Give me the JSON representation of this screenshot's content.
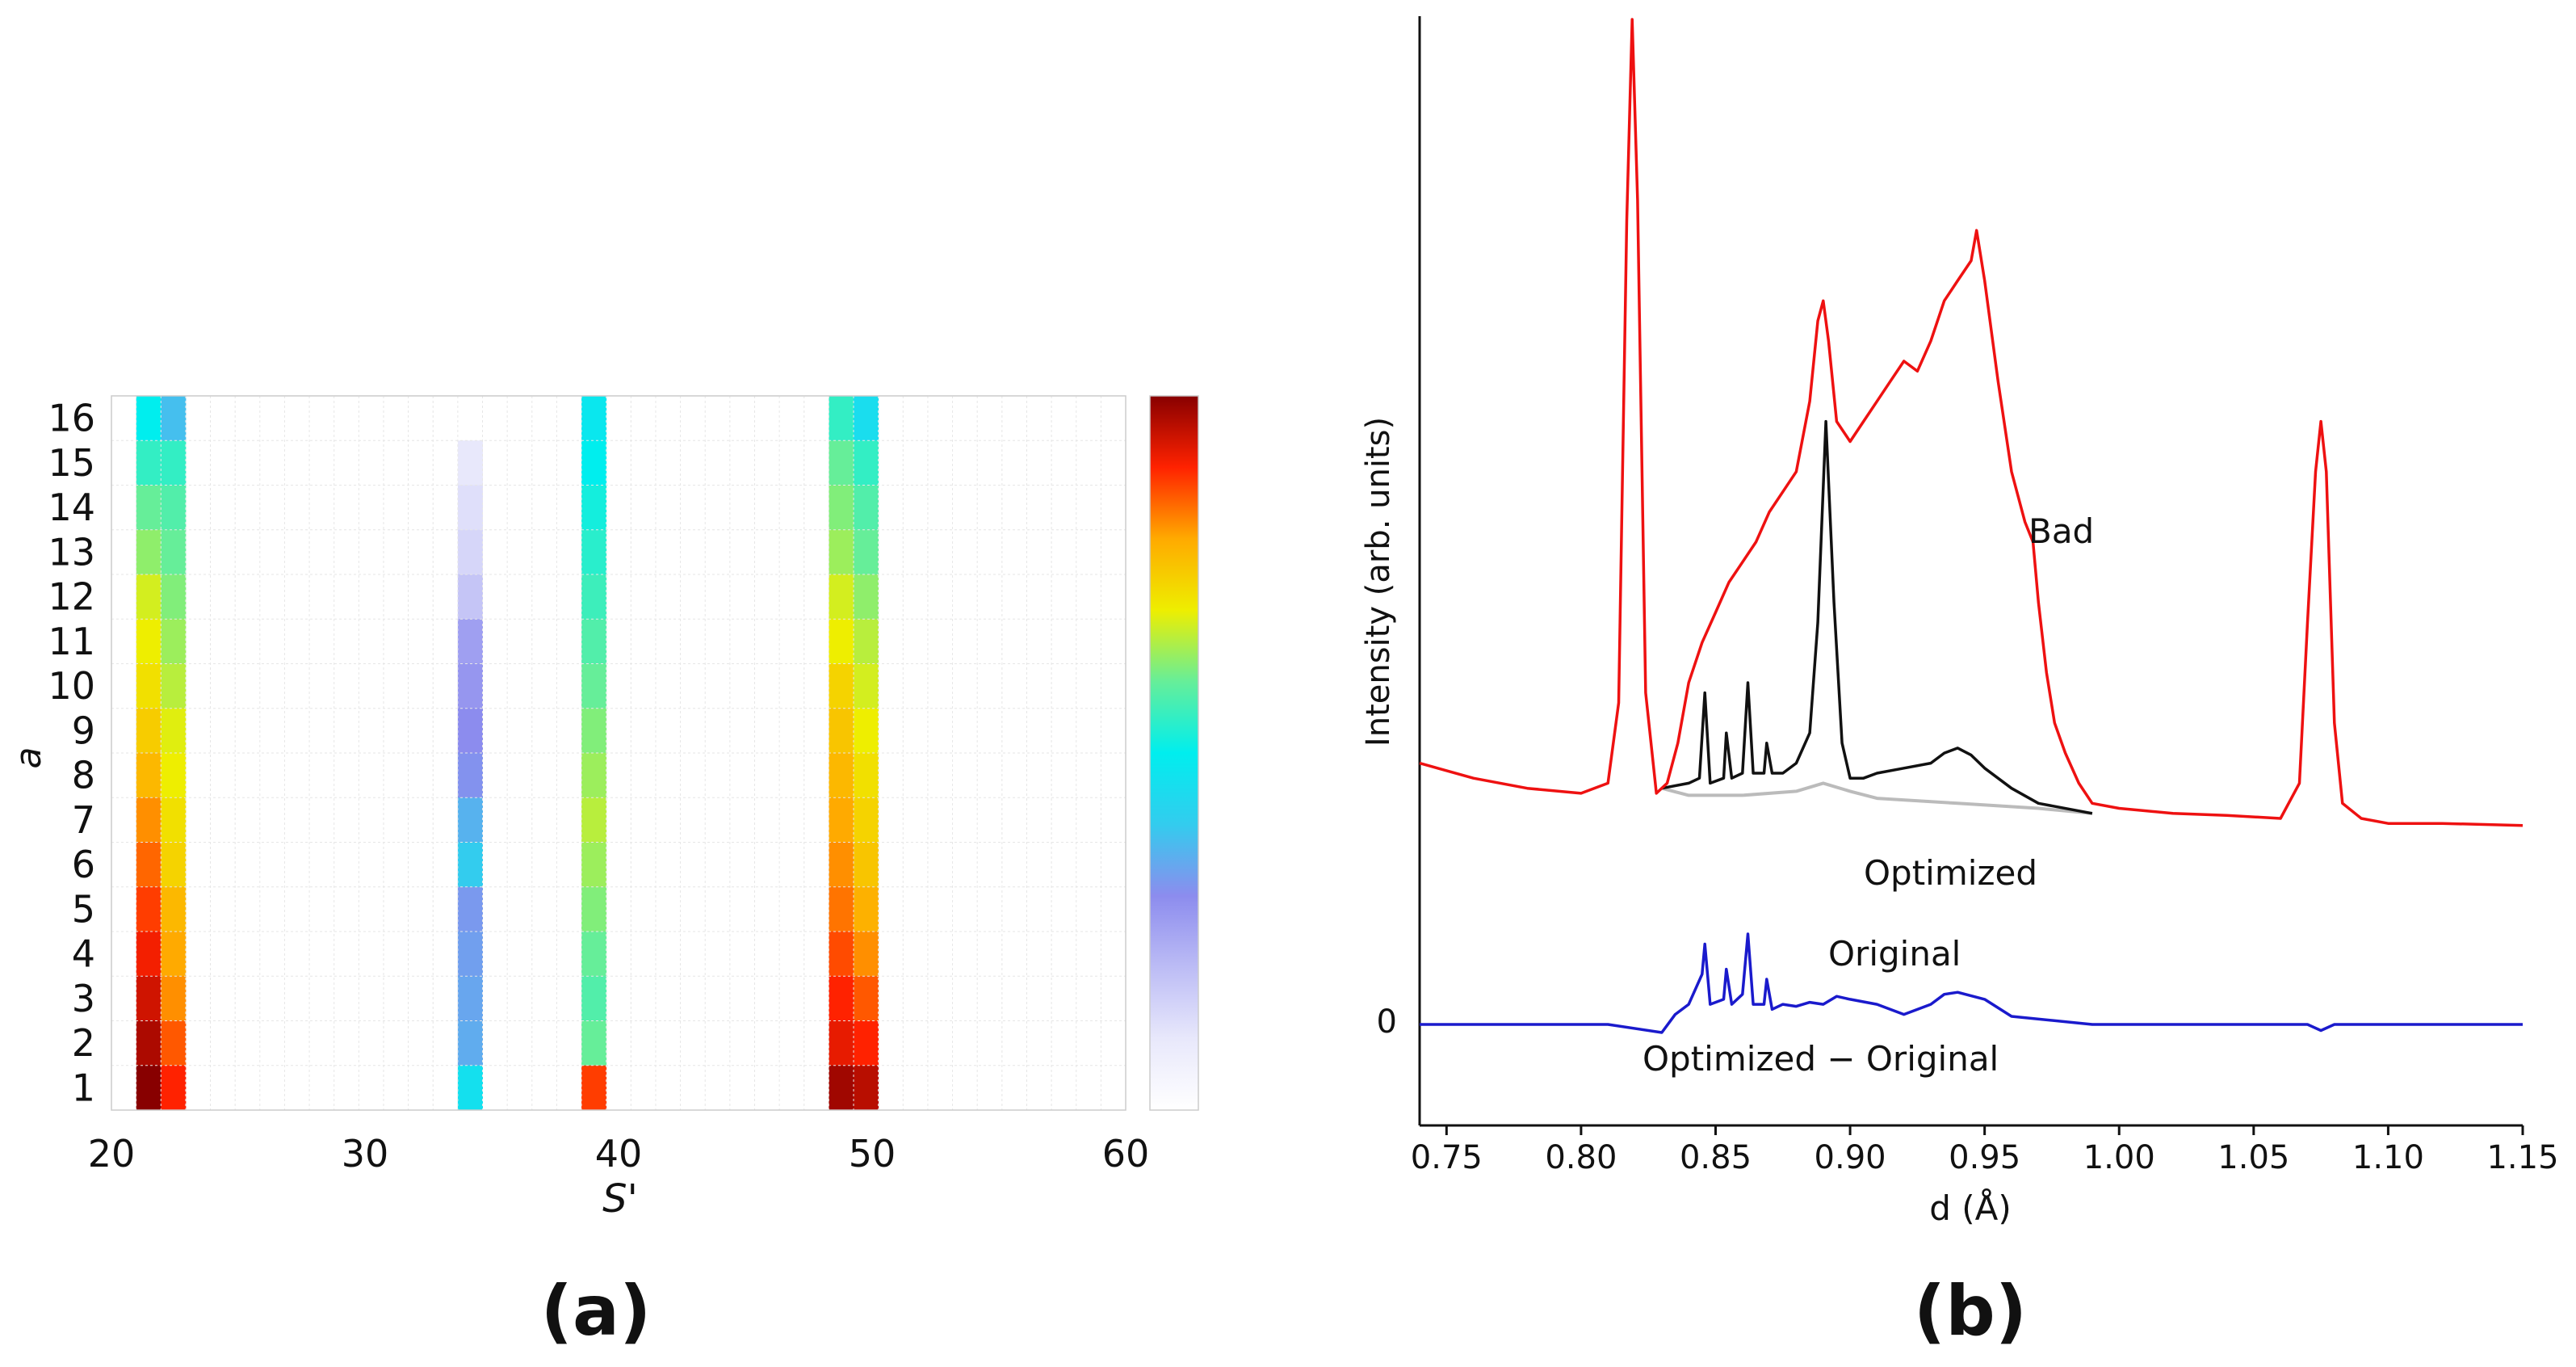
{
  "chart_data": [
    {
      "panel": "a",
      "type": "heatmap",
      "xlabel": "S'",
      "ylabel": "a",
      "xlim": [
        20,
        60
      ],
      "ylim": [
        1,
        16
      ],
      "x_ticks": [
        "20",
        "30",
        "40",
        "50",
        "60"
      ],
      "y_ticks": [
        "1",
        "2",
        "3",
        "4",
        "5",
        "6",
        "7",
        "8",
        "9",
        "10",
        "11",
        "12",
        "13",
        "14",
        "15",
        "16"
      ],
      "colorbar": {
        "colormap": "white-lavender-blue-cyan-green-yellow-orange-red-darkred",
        "stops": [
          "#ffffff",
          "#e8e8fb",
          "#bcbcf5",
          "#8c8cee",
          "#33ccee",
          "#00eeee",
          "#66ee99",
          "#eeee00",
          "#ffaa00",
          "#ff2200",
          "#880000"
        ],
        "labels": []
      },
      "columns": [
        {
          "s": 21,
          "a_values": [
            16,
            15,
            14,
            13,
            12,
            11,
            10,
            9,
            8,
            7,
            6,
            5,
            4,
            3,
            2,
            1
          ],
          "cell_values": [
            0.5,
            0.55,
            0.6,
            0.63,
            0.68,
            0.7,
            0.72,
            0.75,
            0.78,
            0.82,
            0.85,
            0.88,
            0.91,
            0.94,
            0.97,
            1.0
          ]
        },
        {
          "s": 22,
          "a_values": [
            16,
            15,
            14,
            13,
            12,
            11,
            10,
            9,
            8,
            7,
            6,
            5,
            4,
            3,
            2,
            1
          ],
          "cell_values": [
            0.38,
            0.55,
            0.58,
            0.6,
            0.62,
            0.64,
            0.66,
            0.69,
            0.7,
            0.72,
            0.74,
            0.78,
            0.8,
            0.82,
            0.86,
            0.9
          ]
        },
        {
          "s": 34,
          "a_values": [
            15,
            14,
            13,
            12,
            11,
            10,
            9,
            8,
            7,
            6,
            5,
            4,
            3,
            2,
            1
          ],
          "cell_values": [
            0.1,
            0.12,
            0.14,
            0.18,
            0.26,
            0.28,
            0.3,
            0.31,
            0.36,
            0.4,
            0.32,
            0.33,
            0.34,
            0.35,
            0.46
          ]
        },
        {
          "s": 39,
          "a_values": [
            16,
            15,
            14,
            13,
            12,
            11,
            10,
            9,
            8,
            7,
            6,
            5,
            4,
            3,
            2,
            1
          ],
          "cell_values": [
            0.48,
            0.5,
            0.52,
            0.54,
            0.56,
            0.58,
            0.6,
            0.62,
            0.64,
            0.66,
            0.64,
            0.62,
            0.6,
            0.58,
            0.6,
            0.88
          ]
        },
        {
          "s": 49,
          "a_values": [
            16,
            15,
            14,
            13,
            12,
            11,
            10,
            9,
            8,
            7,
            6,
            5,
            4,
            3,
            2,
            1
          ],
          "cell_values": [
            0.55,
            0.6,
            0.62,
            0.64,
            0.68,
            0.7,
            0.74,
            0.76,
            0.78,
            0.8,
            0.82,
            0.84,
            0.87,
            0.9,
            0.92,
            0.98
          ]
        },
        {
          "s": 50,
          "a_values": [
            16,
            15,
            14,
            13,
            12,
            11,
            10,
            9,
            8,
            7,
            6,
            5,
            4,
            3,
            2,
            1
          ],
          "cell_values": [
            0.45,
            0.55,
            0.58,
            0.6,
            0.63,
            0.66,
            0.68,
            0.7,
            0.72,
            0.74,
            0.76,
            0.79,
            0.82,
            0.86,
            0.9,
            0.96
          ]
        }
      ]
    },
    {
      "panel": "b",
      "type": "line",
      "xlabel": "d (Å)",
      "ylabel": "Intensity (arb. units)",
      "xlim": [
        0.74,
        1.15
      ],
      "x_ticks": [
        "0.75",
        "0.80",
        "0.85",
        "0.90",
        "0.95",
        "1.00",
        "1.05",
        "1.10",
        "1.15"
      ],
      "y_ticks": [
        "0"
      ],
      "series": [
        {
          "name": "Bad",
          "color": "#ee1111",
          "x": [
            0.74,
            0.76,
            0.78,
            0.8,
            0.81,
            0.814,
            0.817,
            0.819,
            0.821,
            0.824,
            0.828,
            0.832,
            0.836,
            0.84,
            0.845,
            0.85,
            0.855,
            0.86,
            0.865,
            0.87,
            0.875,
            0.88,
            0.885,
            0.888,
            0.89,
            0.892,
            0.895,
            0.9,
            0.905,
            0.91,
            0.915,
            0.92,
            0.925,
            0.93,
            0.935,
            0.94,
            0.945,
            0.947,
            0.95,
            0.955,
            0.96,
            0.965,
            0.968,
            0.97,
            0.973,
            0.976,
            0.98,
            0.985,
            0.99,
            1.0,
            1.02,
            1.04,
            1.06,
            1.067,
            1.07,
            1.073,
            1.075,
            1.077,
            1.08,
            1.083,
            1.09,
            1.1,
            1.12,
            1.15
          ],
          "y": [
            0.26,
            0.245,
            0.235,
            0.23,
            0.24,
            0.32,
            0.8,
            1.0,
            0.82,
            0.33,
            0.23,
            0.24,
            0.28,
            0.34,
            0.38,
            0.41,
            0.44,
            0.46,
            0.48,
            0.51,
            0.53,
            0.55,
            0.62,
            0.7,
            0.72,
            0.68,
            0.6,
            0.58,
            0.6,
            0.62,
            0.64,
            0.66,
            0.65,
            0.68,
            0.72,
            0.74,
            0.76,
            0.79,
            0.74,
            0.64,
            0.55,
            0.5,
            0.48,
            0.42,
            0.35,
            0.3,
            0.27,
            0.24,
            0.22,
            0.215,
            0.21,
            0.208,
            0.205,
            0.24,
            0.4,
            0.55,
            0.6,
            0.55,
            0.3,
            0.22,
            0.205,
            0.2,
            0.2,
            0.198
          ]
        },
        {
          "name": "Optimized",
          "color": "#111111",
          "x": [
            0.83,
            0.84,
            0.844,
            0.846,
            0.848,
            0.853,
            0.854,
            0.856,
            0.86,
            0.862,
            0.864,
            0.868,
            0.869,
            0.871,
            0.875,
            0.88,
            0.885,
            0.888,
            0.891,
            0.894,
            0.897,
            0.9,
            0.905,
            0.91,
            0.92,
            0.93,
            0.935,
            0.94,
            0.945,
            0.95,
            0.96,
            0.97,
            0.99
          ],
          "y": [
            0.235,
            0.24,
            0.245,
            0.33,
            0.24,
            0.245,
            0.29,
            0.245,
            0.25,
            0.34,
            0.25,
            0.25,
            0.28,
            0.25,
            0.25,
            0.26,
            0.29,
            0.4,
            0.6,
            0.42,
            0.28,
            0.245,
            0.245,
            0.25,
            0.255,
            0.26,
            0.27,
            0.275,
            0.268,
            0.255,
            0.235,
            0.22,
            0.21
          ]
        },
        {
          "name": "Original",
          "color": "#bbbbbb",
          "x": [
            0.83,
            0.84,
            0.86,
            0.88,
            0.89,
            0.9,
            0.91,
            0.94,
            0.97,
            0.99
          ],
          "y": [
            0.235,
            0.228,
            0.228,
            0.232,
            0.24,
            0.232,
            0.225,
            0.22,
            0.215,
            0.21
          ]
        },
        {
          "name": "Optimized − Original",
          "color": "#1a1acc",
          "x": [
            0.74,
            0.81,
            0.83,
            0.835,
            0.84,
            0.845,
            0.846,
            0.848,
            0.853,
            0.854,
            0.856,
            0.86,
            0.862,
            0.864,
            0.868,
            0.869,
            0.871,
            0.875,
            0.88,
            0.885,
            0.89,
            0.895,
            0.9,
            0.91,
            0.92,
            0.93,
            0.935,
            0.94,
            0.95,
            0.96,
            0.99,
            1.0,
            1.07,
            1.075,
            1.08,
            1.15
          ],
          "y": [
            0.0,
            0.0,
            -0.008,
            0.01,
            0.02,
            0.05,
            0.08,
            0.02,
            0.025,
            0.055,
            0.02,
            0.03,
            0.09,
            0.02,
            0.02,
            0.045,
            0.015,
            0.02,
            0.018,
            0.022,
            0.02,
            0.028,
            0.025,
            0.02,
            0.01,
            0.02,
            0.03,
            0.032,
            0.025,
            0.008,
            0.0,
            0.0,
            0.0,
            -0.006,
            0.0,
            0.0
          ]
        }
      ],
      "annotations": [
        "Bad",
        "Optimized",
        "Original",
        "Optimized − Original"
      ]
    }
  ],
  "panel_labels": {
    "a": "(a)",
    "b": "(b)"
  },
  "zero_label": "0"
}
